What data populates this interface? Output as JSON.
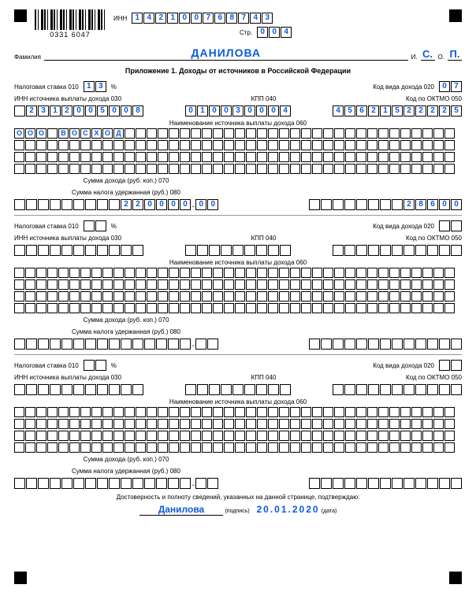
{
  "barcode_number": "0331 6047",
  "labels": {
    "inn": "ИНН",
    "page": "Стр.",
    "surname": "Фамилия",
    "i": "И.",
    "o": "О.",
    "title": "Приложение 1. Доходы от источников в Российской Федерации",
    "stavka": "Налоговая ставка   010",
    "percent": "%",
    "kod_dohoda": "Код вида дохода   020",
    "inn_src": "ИНН источника выплаты дохода   030",
    "kpp": "КПП   040",
    "oktmo": "Код по ОКТМО   050",
    "src_name": "Наименование источника выплаты дохода   060",
    "sum_dohod": "Сумма дохода (руб. коп.)   070",
    "sum_nalog": "Сумма налога удержанная (руб.)   080",
    "declaration": "Достоверность и полноту сведений, указанных на данной странице, подтверждаю:",
    "sign": "(подпись)",
    "date_cap": "(дата)"
  },
  "header": {
    "inn": [
      "1",
      "4",
      "2",
      "1",
      "0",
      "0",
      "7",
      "6",
      "8",
      "7",
      "4",
      "3"
    ],
    "page": [
      "0",
      "0",
      "4"
    ],
    "surname": "ДАНИЛОВА",
    "init_i": "С.",
    "init_o": "П."
  },
  "colors": {
    "value": "#0a5bd9",
    "border": "#000000"
  },
  "blocks": [
    {
      "stavka": [
        "1",
        "3"
      ],
      "kod_dohoda": [
        "0",
        "7"
      ],
      "inn_src": [
        "",
        "2",
        "3",
        "1",
        "2",
        "0",
        "0",
        "5",
        "0",
        "0",
        "8"
      ],
      "kpp": [
        "0",
        "1",
        "0",
        "0",
        "3",
        "0",
        "0",
        "0",
        "4"
      ],
      "oktmo": [
        "4",
        "5",
        "6",
        "2",
        "1",
        "5",
        "2",
        "2",
        "2",
        "2",
        "5"
      ],
      "name_rows": [
        [
          "О",
          "О",
          "О",
          "",
          "В",
          "О",
          "С",
          "Х",
          "О",
          "Д",
          "",
          "",
          "",
          "",
          "",
          "",
          "",
          "",
          "",
          "",
          "",
          "",
          "",
          "",
          "",
          "",
          "",
          "",
          "",
          "",
          "",
          "",
          "",
          "",
          "",
          "",
          "",
          "",
          "",
          ""
        ],
        [
          "",
          "",
          "",
          "",
          "",
          "",
          "",
          "",
          "",
          "",
          "",
          "",
          "",
          "",
          "",
          "",
          "",
          "",
          "",
          "",
          "",
          "",
          "",
          "",
          "",
          "",
          "",
          "",
          "",
          "",
          "",
          "",
          "",
          "",
          "",
          "",
          "",
          "",
          "",
          ""
        ],
        [
          "",
          "",
          "",
          "",
          "",
          "",
          "",
          "",
          "",
          "",
          "",
          "",
          "",
          "",
          "",
          "",
          "",
          "",
          "",
          "",
          "",
          "",
          "",
          "",
          "",
          "",
          "",
          "",
          "",
          "",
          "",
          "",
          "",
          "",
          "",
          "",
          "",
          "",
          "",
          ""
        ],
        [
          "",
          "",
          "",
          "",
          "",
          "",
          "",
          "",
          "",
          "",
          "",
          "",
          "",
          "",
          "",
          "",
          "",
          "",
          "",
          "",
          "",
          "",
          "",
          "",
          "",
          "",
          "",
          "",
          "",
          "",
          "",
          "",
          "",
          "",
          "",
          "",
          "",
          "",
          "",
          ""
        ]
      ],
      "sum_dohod_int": [
        "",
        "",
        "",
        "",
        "",
        "",
        "",
        "",
        "",
        "2",
        "2",
        "0",
        "0",
        "0",
        "0"
      ],
      "sum_dohod_dec": [
        "0",
        "0"
      ],
      "sum_nalog": [
        "",
        "",
        "",
        "",
        "",
        "",
        "",
        "",
        "2",
        "8",
        "6",
        "0",
        "0"
      ]
    },
    {
      "stavka": [
        "",
        ""
      ],
      "kod_dohoda": [
        "",
        ""
      ],
      "inn_src": [
        "",
        "",
        "",
        "",
        "",
        "",
        "",
        "",
        "",
        "",
        ""
      ],
      "kpp": [
        "",
        "",
        "",
        "",
        "",
        "",
        "",
        "",
        ""
      ],
      "oktmo": [
        "",
        "",
        "",
        "",
        "",
        "",
        "",
        "",
        "",
        "",
        ""
      ],
      "name_rows": [
        [
          "",
          "",
          "",
          "",
          "",
          "",
          "",
          "",
          "",
          "",
          "",
          "",
          "",
          "",
          "",
          "",
          "",
          "",
          "",
          "",
          "",
          "",
          "",
          "",
          "",
          "",
          "",
          "",
          "",
          "",
          "",
          "",
          "",
          "",
          "",
          "",
          "",
          "",
          "",
          ""
        ],
        [
          "",
          "",
          "",
          "",
          "",
          "",
          "",
          "",
          "",
          "",
          "",
          "",
          "",
          "",
          "",
          "",
          "",
          "",
          "",
          "",
          "",
          "",
          "",
          "",
          "",
          "",
          "",
          "",
          "",
          "",
          "",
          "",
          "",
          "",
          "",
          "",
          "",
          "",
          "",
          ""
        ],
        [
          "",
          "",
          "",
          "",
          "",
          "",
          "",
          "",
          "",
          "",
          "",
          "",
          "",
          "",
          "",
          "",
          "",
          "",
          "",
          "",
          "",
          "",
          "",
          "",
          "",
          "",
          "",
          "",
          "",
          "",
          "",
          "",
          "",
          "",
          "",
          "",
          "",
          "",
          "",
          ""
        ],
        [
          "",
          "",
          "",
          "",
          "",
          "",
          "",
          "",
          "",
          "",
          "",
          "",
          "",
          "",
          "",
          "",
          "",
          "",
          "",
          "",
          "",
          "",
          "",
          "",
          "",
          "",
          "",
          "",
          "",
          "",
          "",
          "",
          "",
          "",
          "",
          "",
          "",
          "",
          "",
          ""
        ]
      ],
      "sum_dohod_int": [
        "",
        "",
        "",
        "",
        "",
        "",
        "",
        "",
        "",
        "",
        "",
        "",
        "",
        "",
        ""
      ],
      "sum_dohod_dec": [
        "",
        ""
      ],
      "sum_nalog": [
        "",
        "",
        "",
        "",
        "",
        "",
        "",
        "",
        "",
        "",
        "",
        "",
        ""
      ]
    },
    {
      "stavka": [
        "",
        ""
      ],
      "kod_dohoda": [
        "",
        ""
      ],
      "inn_src": [
        "",
        "",
        "",
        "",
        "",
        "",
        "",
        "",
        "",
        "",
        ""
      ],
      "kpp": [
        "",
        "",
        "",
        "",
        "",
        "",
        "",
        "",
        ""
      ],
      "oktmo": [
        "",
        "",
        "",
        "",
        "",
        "",
        "",
        "",
        "",
        "",
        ""
      ],
      "name_rows": [
        [
          "",
          "",
          "",
          "",
          "",
          "",
          "",
          "",
          "",
          "",
          "",
          "",
          "",
          "",
          "",
          "",
          "",
          "",
          "",
          "",
          "",
          "",
          "",
          "",
          "",
          "",
          "",
          "",
          "",
          "",
          "",
          "",
          "",
          "",
          "",
          "",
          "",
          "",
          "",
          ""
        ],
        [
          "",
          "",
          "",
          "",
          "",
          "",
          "",
          "",
          "",
          "",
          "",
          "",
          "",
          "",
          "",
          "",
          "",
          "",
          "",
          "",
          "",
          "",
          "",
          "",
          "",
          "",
          "",
          "",
          "",
          "",
          "",
          "",
          "",
          "",
          "",
          "",
          "",
          "",
          "",
          ""
        ],
        [
          "",
          "",
          "",
          "",
          "",
          "",
          "",
          "",
          "",
          "",
          "",
          "",
          "",
          "",
          "",
          "",
          "",
          "",
          "",
          "",
          "",
          "",
          "",
          "",
          "",
          "",
          "",
          "",
          "",
          "",
          "",
          "",
          "",
          "",
          "",
          "",
          "",
          "",
          "",
          ""
        ],
        [
          "",
          "",
          "",
          "",
          "",
          "",
          "",
          "",
          "",
          "",
          "",
          "",
          "",
          "",
          "",
          "",
          "",
          "",
          "",
          "",
          "",
          "",
          "",
          "",
          "",
          "",
          "",
          "",
          "",
          "",
          "",
          "",
          "",
          "",
          "",
          "",
          "",
          "",
          "",
          ""
        ]
      ],
      "sum_dohod_int": [
        "",
        "",
        "",
        "",
        "",
        "",
        "",
        "",
        "",
        "",
        "",
        "",
        "",
        "",
        ""
      ],
      "sum_dohod_dec": [
        "",
        ""
      ],
      "sum_nalog": [
        "",
        "",
        "",
        "",
        "",
        "",
        "",
        "",
        "",
        "",
        "",
        "",
        ""
      ]
    }
  ],
  "signature": {
    "name": "Данилова",
    "date": "20.01.2020"
  }
}
